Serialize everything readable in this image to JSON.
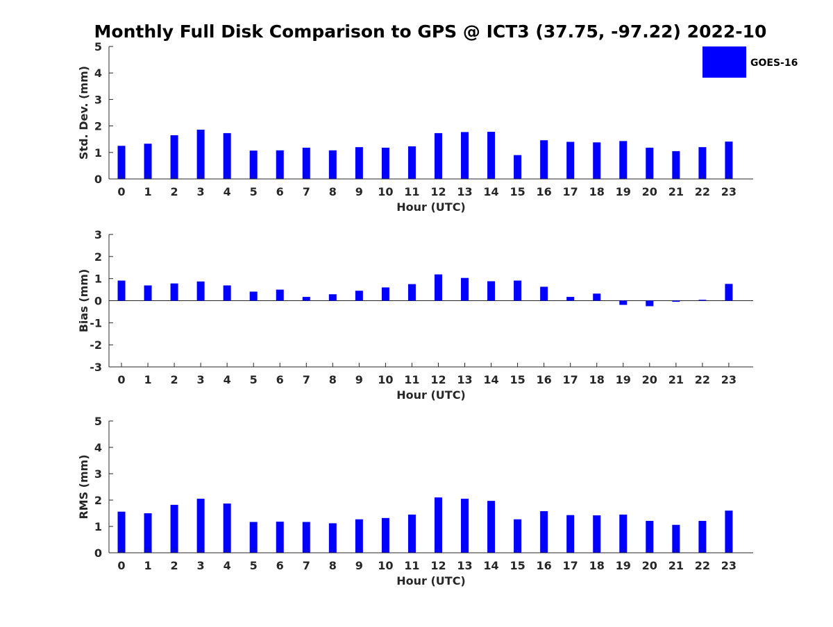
{
  "title": "Monthly Full Disk Comparison to GPS @ ICT3 (37.75, -97.22) 2022-10",
  "legend": {
    "label": "GOES-16",
    "color": "#0000ff",
    "placement": "top-right"
  },
  "chart_data": [
    {
      "type": "bar",
      "title": "Monthly Full Disk Comparison to GPS @ ICT3 (37.75, -97.22) 2022-10",
      "xlabel": "Hour (UTC)",
      "ylabel": "Std. Dev. (mm)",
      "categories": [
        "0",
        "1",
        "2",
        "3",
        "4",
        "5",
        "6",
        "7",
        "8",
        "9",
        "10",
        "11",
        "12",
        "13",
        "14",
        "15",
        "16",
        "17",
        "18",
        "19",
        "20",
        "21",
        "22",
        "23"
      ],
      "ylim": [
        0,
        5
      ],
      "yticks": [
        "0",
        "1",
        "2",
        "3",
        "4",
        "5"
      ],
      "grid": false,
      "series": [
        {
          "name": "GOES-16",
          "color": "#0000ff",
          "values": [
            1.25,
            1.33,
            1.65,
            1.86,
            1.73,
            1.07,
            1.08,
            1.18,
            1.08,
            1.2,
            1.18,
            1.23,
            1.73,
            1.77,
            1.78,
            0.9,
            1.46,
            1.4,
            1.38,
            1.43,
            1.18,
            1.05,
            1.2,
            1.41
          ]
        }
      ]
    },
    {
      "type": "bar",
      "xlabel": "Hour (UTC)",
      "ylabel": "Bias (mm)",
      "categories": [
        "0",
        "1",
        "2",
        "3",
        "4",
        "5",
        "6",
        "7",
        "8",
        "9",
        "10",
        "11",
        "12",
        "13",
        "14",
        "15",
        "16",
        "17",
        "18",
        "19",
        "20",
        "21",
        "22",
        "23"
      ],
      "ylim": [
        -3,
        3
      ],
      "yticks": [
        "-3",
        "-2",
        "-1",
        "0",
        "1",
        "2",
        "3"
      ],
      "grid": false,
      "series": [
        {
          "name": "GOES-16",
          "color": "#0000ff",
          "values": [
            0.91,
            0.69,
            0.78,
            0.87,
            0.69,
            0.41,
            0.5,
            0.17,
            0.29,
            0.45,
            0.6,
            0.75,
            1.19,
            1.03,
            0.88,
            0.91,
            0.63,
            0.17,
            0.32,
            -0.19,
            -0.25,
            -0.05,
            0.04,
            0.76
          ]
        }
      ]
    },
    {
      "type": "bar",
      "xlabel": "Hour (UTC)",
      "ylabel": "RMS (mm)",
      "categories": [
        "0",
        "1",
        "2",
        "3",
        "4",
        "5",
        "6",
        "7",
        "8",
        "9",
        "10",
        "11",
        "12",
        "13",
        "14",
        "15",
        "16",
        "17",
        "18",
        "19",
        "20",
        "21",
        "22",
        "23"
      ],
      "ylim": [
        0,
        5
      ],
      "yticks": [
        "0",
        "1",
        "2",
        "3",
        "4",
        "5"
      ],
      "grid": false,
      "series": [
        {
          "name": "GOES-16",
          "color": "#0000ff",
          "values": [
            1.56,
            1.5,
            1.82,
            2.05,
            1.87,
            1.17,
            1.18,
            1.17,
            1.12,
            1.27,
            1.32,
            1.45,
            2.1,
            2.05,
            1.97,
            1.27,
            1.58,
            1.43,
            1.42,
            1.45,
            1.21,
            1.06,
            1.21,
            1.6
          ]
        }
      ]
    }
  ]
}
